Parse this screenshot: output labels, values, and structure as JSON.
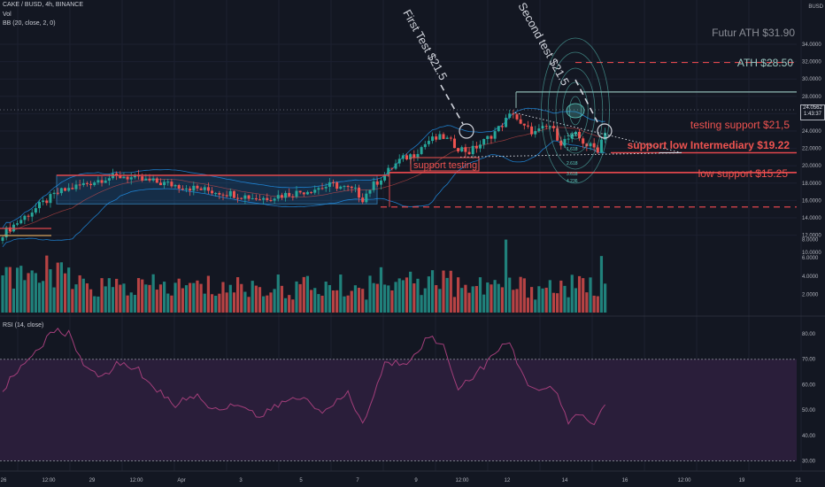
{
  "header": {
    "symbol_line": "CAKE / BUSD, 4h, BINANCE",
    "vol_label": "Vol",
    "bb_label": "BB (20, close, 2, 0)",
    "rsi_label": "RSI (14, close)"
  },
  "price_axis": {
    "currency": "BUSD",
    "ticks": [
      "34.0000",
      "32.0000",
      "30.0000",
      "28.0000",
      "26.0000",
      "24.0000",
      "22.0000",
      "20.0000",
      "18.0000",
      "16.0000",
      "14.0000",
      "12.0000",
      "10.0000"
    ],
    "last_price": "24.0562",
    "countdown": "1:43:37"
  },
  "volume_axis": {
    "ticks": [
      "8.0000",
      "6.0000",
      "4.0000",
      "2.0000"
    ]
  },
  "rsi_axis": {
    "ticks": [
      "80.00",
      "70.00",
      "60.00",
      "50.00",
      "40.00",
      "30.00"
    ]
  },
  "time_axis": {
    "ticks": [
      "26",
      "12:00",
      "29",
      "12:00",
      "Apr",
      "3",
      "5",
      "7",
      "9",
      "12:00",
      "12",
      "14",
      "16",
      "12:00",
      "19",
      "21"
    ]
  },
  "annotations": {
    "first_test": "First Test $21.5",
    "second_test": "Second test $21.5",
    "futur_ath": "Futur ATH $31.90",
    "ath": "ATH $28.50",
    "testing_support": "testing support $21,5",
    "support_intermediary": "support low Intermediary $19.22",
    "low_support": "low support $15.25",
    "support_testing": "support testing"
  },
  "fib_labels": [
    "1.000",
    "1.618",
    "2.618",
    "3.618",
    "4.236"
  ],
  "colors": {
    "background": "#131722",
    "up": "#26a69a",
    "down": "#ef5350",
    "red_line": "#e0474c",
    "bb_band": "#2196f3",
    "rsi_line": "#a33e7a",
    "rsi_band": "#2a1e3a",
    "teal_annotation": "#5fd3c6"
  },
  "chart_data": {
    "type": "candlestick",
    "interval": "4h",
    "price_range": [
      10,
      35
    ],
    "volume_range": [
      0,
      9
    ],
    "rsi_range": [
      28,
      83
    ],
    "levels": [
      {
        "name": "Futur ATH",
        "value": 31.9,
        "style": "dashed"
      },
      {
        "name": "ATH",
        "value": 28.5,
        "style": "solid"
      },
      {
        "name": "testing support",
        "value": 21.5,
        "style": "solid"
      },
      {
        "name": "support low Intermediary",
        "value": 19.22,
        "style": "solid"
      },
      {
        "name": "low support",
        "value": 15.25,
        "style": "dashed"
      }
    ],
    "consolidation_box": {
      "low": 15.6,
      "high": 18.9
    },
    "close_path": [
      {
        "i": 0,
        "v": 12.2
      },
      {
        "i": 5,
        "v": 13.8
      },
      {
        "i": 10,
        "v": 15.4
      },
      {
        "i": 15,
        "v": 16.9
      },
      {
        "i": 20,
        "v": 17.6
      },
      {
        "i": 28,
        "v": 18.6
      },
      {
        "i": 33,
        "v": 18.8
      },
      {
        "i": 37,
        "v": 18.4
      },
      {
        "i": 45,
        "v": 17.9
      },
      {
        "i": 55,
        "v": 17.2
      },
      {
        "i": 62,
        "v": 16.8
      },
      {
        "i": 70,
        "v": 16.2
      },
      {
        "i": 80,
        "v": 16.9
      },
      {
        "i": 90,
        "v": 17.8
      },
      {
        "i": 96,
        "v": 17.1
      },
      {
        "i": 98,
        "v": 16.2
      },
      {
        "i": 100,
        "v": 17.4
      },
      {
        "i": 104,
        "v": 19.0
      },
      {
        "i": 108,
        "v": 20.6
      },
      {
        "i": 112,
        "v": 21.4
      },
      {
        "i": 116,
        "v": 22.9
      },
      {
        "i": 120,
        "v": 23.3
      },
      {
        "i": 124,
        "v": 22.1
      },
      {
        "i": 127,
        "v": 21.6
      },
      {
        "i": 131,
        "v": 22.8
      },
      {
        "i": 135,
        "v": 24.3
      },
      {
        "i": 139,
        "v": 26.2
      },
      {
        "i": 141,
        "v": 24.6
      },
      {
        "i": 145,
        "v": 23.8
      },
      {
        "i": 149,
        "v": 24.6
      },
      {
        "i": 152,
        "v": 22.7
      },
      {
        "i": 156,
        "v": 23.5
      },
      {
        "i": 159,
        "v": 22.4
      },
      {
        "i": 162,
        "v": 21.9
      },
      {
        "i": 164,
        "v": 24.1
      }
    ],
    "rsi_path": [
      {
        "i": 0,
        "v": 58
      },
      {
        "i": 5,
        "v": 67
      },
      {
        "i": 10,
        "v": 75
      },
      {
        "i": 14,
        "v": 81
      },
      {
        "i": 18,
        "v": 80
      },
      {
        "i": 22,
        "v": 69
      },
      {
        "i": 26,
        "v": 62
      },
      {
        "i": 31,
        "v": 68
      },
      {
        "i": 36,
        "v": 67
      },
      {
        "i": 42,
        "v": 58
      },
      {
        "i": 47,
        "v": 52
      },
      {
        "i": 52,
        "v": 56
      },
      {
        "i": 58,
        "v": 50
      },
      {
        "i": 64,
        "v": 53
      },
      {
        "i": 70,
        "v": 47
      },
      {
        "i": 76,
        "v": 53
      },
      {
        "i": 82,
        "v": 55
      },
      {
        "i": 88,
        "v": 49
      },
      {
        "i": 94,
        "v": 57
      },
      {
        "i": 98,
        "v": 44
      },
      {
        "i": 104,
        "v": 68
      },
      {
        "i": 110,
        "v": 69
      },
      {
        "i": 116,
        "v": 79
      },
      {
        "i": 120,
        "v": 75
      },
      {
        "i": 124,
        "v": 59
      },
      {
        "i": 128,
        "v": 63
      },
      {
        "i": 134,
        "v": 72
      },
      {
        "i": 138,
        "v": 77
      },
      {
        "i": 142,
        "v": 62
      },
      {
        "i": 146,
        "v": 58
      },
      {
        "i": 150,
        "v": 58
      },
      {
        "i": 154,
        "v": 46
      },
      {
        "i": 158,
        "v": 48
      },
      {
        "i": 161,
        "v": 44
      },
      {
        "i": 164,
        "v": 53
      }
    ],
    "volume_spikes": [
      {
        "i": 137,
        "v": 8.0
      },
      {
        "i": 163,
        "v": 6.2
      }
    ]
  }
}
